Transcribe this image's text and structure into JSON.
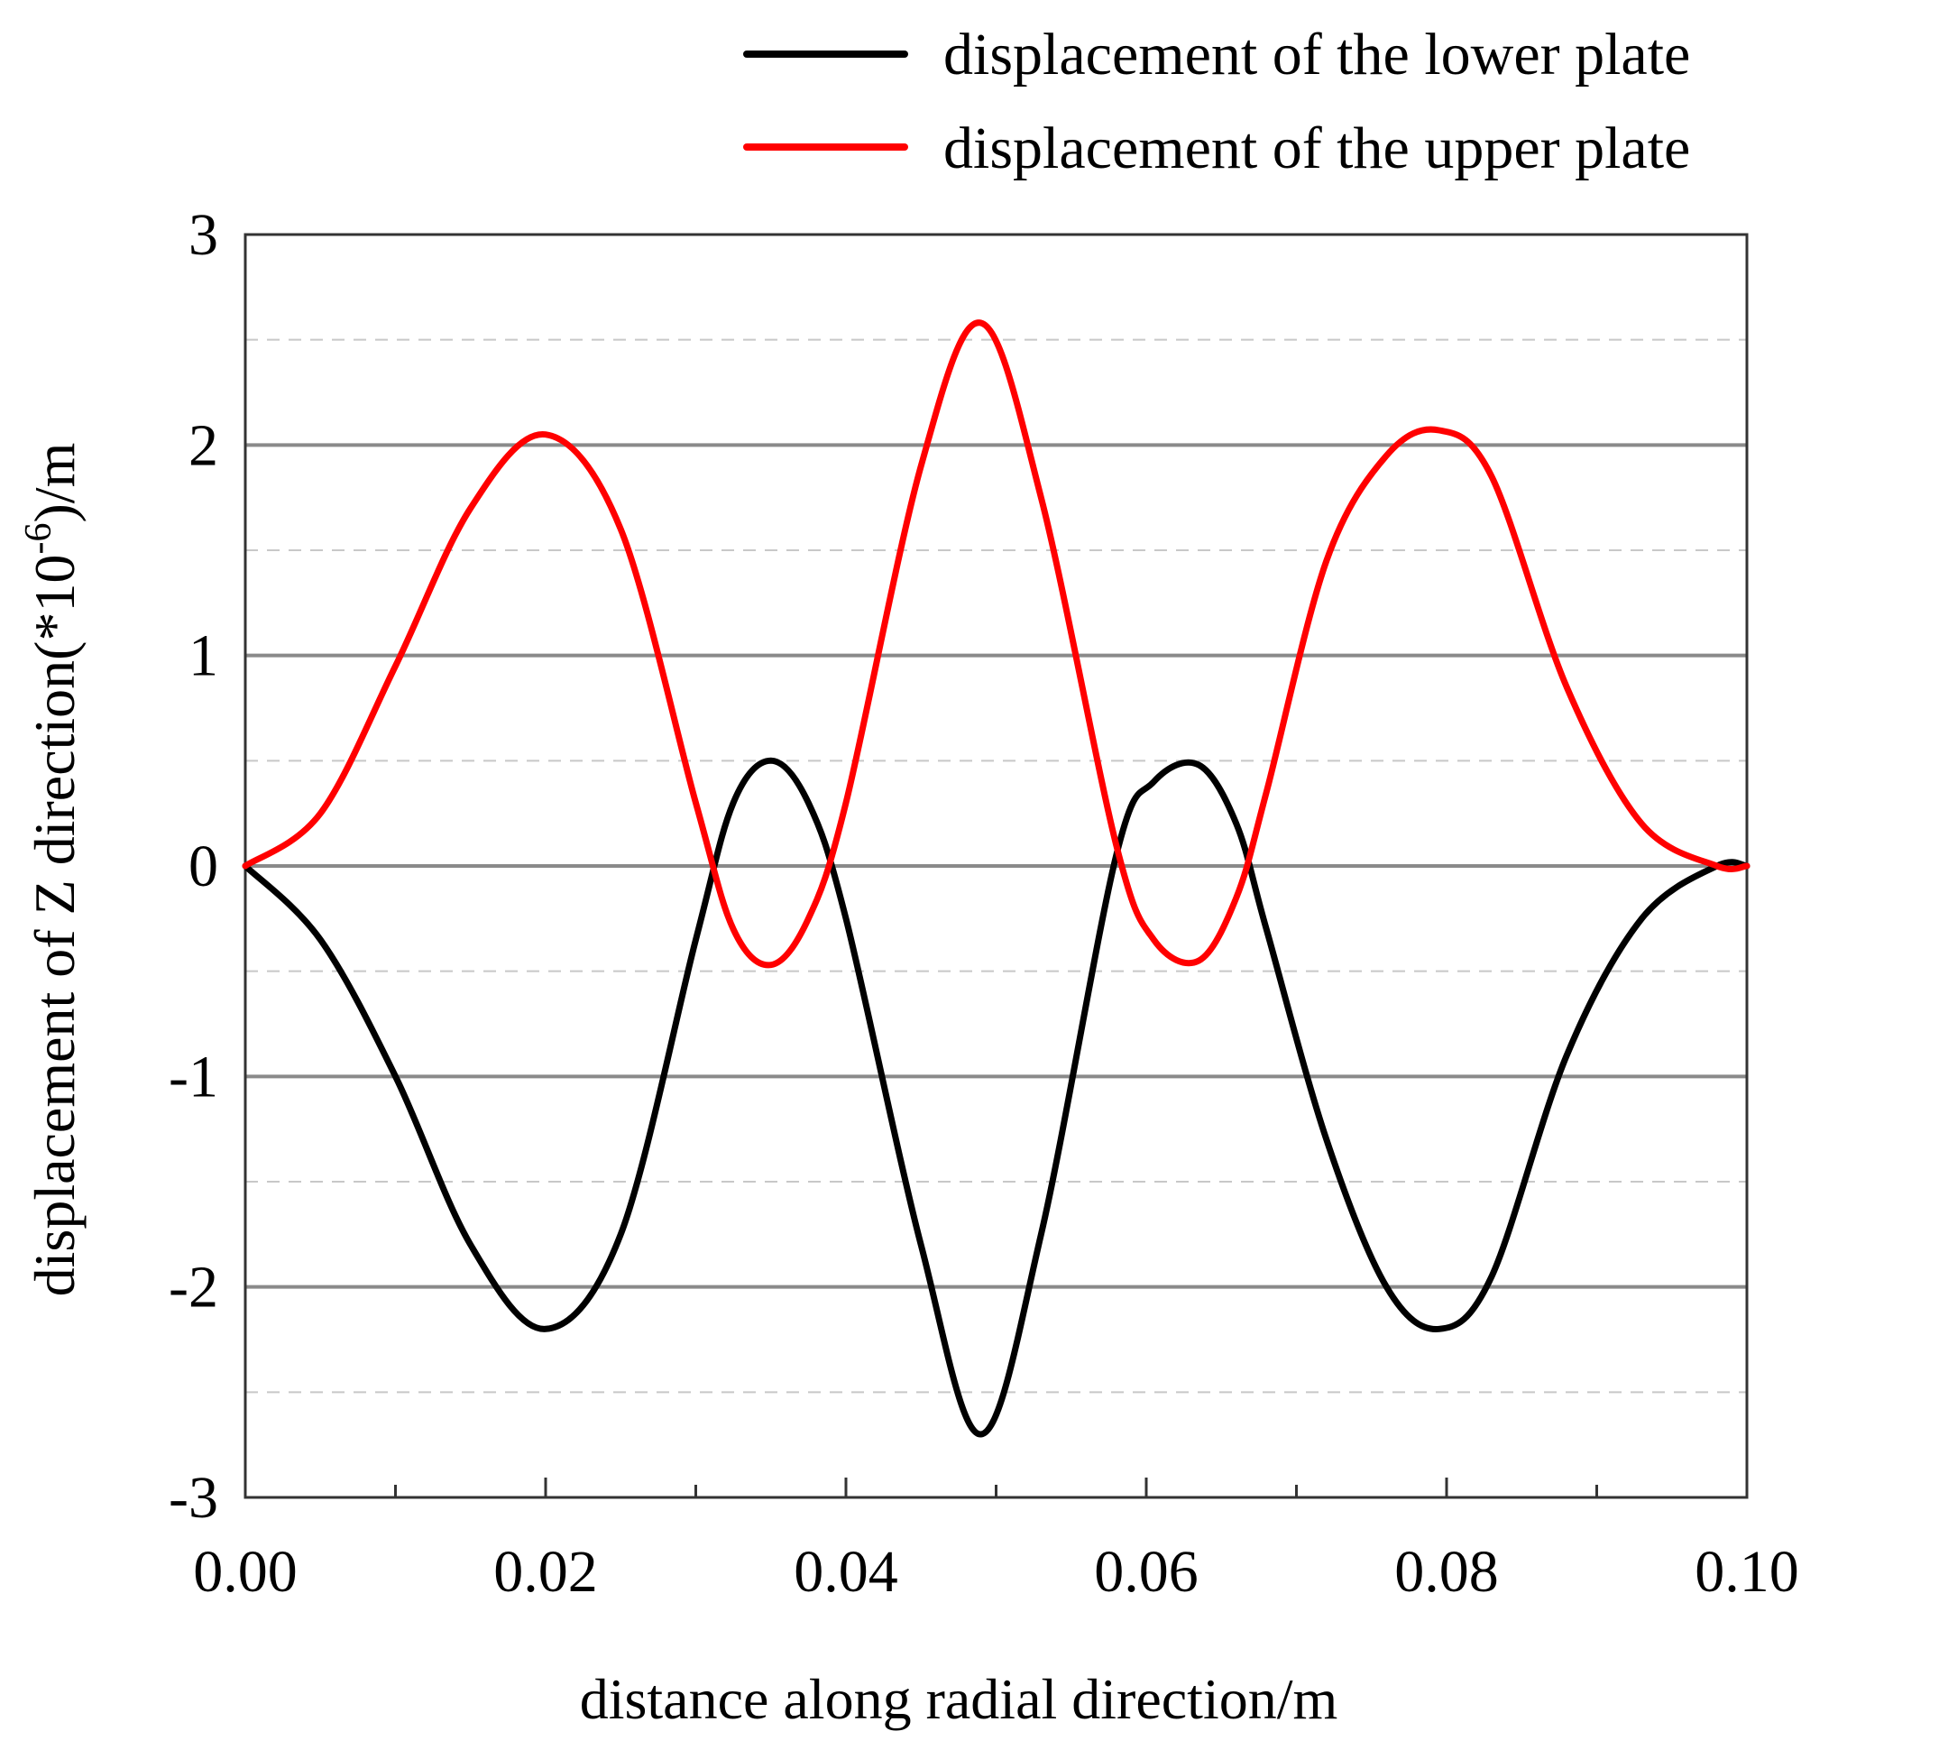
{
  "chart_data": {
    "type": "line",
    "title": "",
    "xlabel": "distance along radial direction/m",
    "ylabel_main": "displacement of Z direction(*10",
    "ylabel_sup": "-6",
    "ylabel_end": ")/m",
    "xlim": [
      0,
      0.1
    ],
    "ylim": [
      -3,
      3
    ],
    "x_ticks": [
      "0.00",
      "0.02",
      "0.04",
      "0.06",
      "0.08",
      "0.10"
    ],
    "x_tick_values": [
      0,
      0.02,
      0.04,
      0.06,
      0.08,
      0.1
    ],
    "y_ticks": [
      "3",
      "2",
      "1",
      "0",
      "-1",
      "-2",
      "-3"
    ],
    "y_tick_values": [
      3,
      2,
      1,
      0,
      -1,
      -2,
      -3
    ],
    "grid_major_y": [
      2,
      1,
      0,
      -1,
      -2
    ],
    "grid_minor_y": [
      2.5,
      1.5,
      0.5,
      -0.5,
      -1.5,
      -2.5
    ],
    "legend_position": "top-right",
    "series": [
      {
        "name": "displacement of the lower plate",
        "color": "#000000",
        "x": [
          0,
          0.005,
          0.01,
          0.015,
          0.02,
          0.025,
          0.03,
          0.0325,
          0.035,
          0.0375,
          0.04,
          0.045,
          0.049,
          0.053,
          0.058,
          0.0605,
          0.0635,
          0.066,
          0.068,
          0.072,
          0.076,
          0.0795,
          0.083,
          0.088,
          0.093,
          0.098,
          0.1
        ],
        "values": [
          0,
          -0.35,
          -1.0,
          -1.8,
          -2.2,
          -1.75,
          -0.35,
          0.3,
          0.5,
          0.3,
          -0.25,
          -1.8,
          -2.7,
          -1.75,
          0.05,
          0.4,
          0.48,
          0.2,
          -0.3,
          -1.3,
          -2.0,
          -2.2,
          -1.95,
          -0.9,
          -0.25,
          0,
          0
        ]
      },
      {
        "name": "displacement of the upper plate",
        "color": "#ff0000",
        "x": [
          0,
          0.005,
          0.01,
          0.015,
          0.02,
          0.025,
          0.03,
          0.0325,
          0.035,
          0.0375,
          0.04,
          0.045,
          0.049,
          0.053,
          0.058,
          0.0605,
          0.0635,
          0.066,
          0.068,
          0.072,
          0.076,
          0.0795,
          0.083,
          0.088,
          0.093,
          0.098,
          0.1
        ],
        "values": [
          0,
          0.25,
          0.95,
          1.7,
          2.05,
          1.6,
          0.3,
          -0.3,
          -0.47,
          -0.25,
          0.3,
          1.9,
          2.58,
          1.75,
          0.1,
          -0.35,
          -0.45,
          -0.15,
          0.35,
          1.45,
          1.95,
          2.07,
          1.85,
          0.85,
          0.2,
          0,
          0
        ]
      }
    ]
  }
}
